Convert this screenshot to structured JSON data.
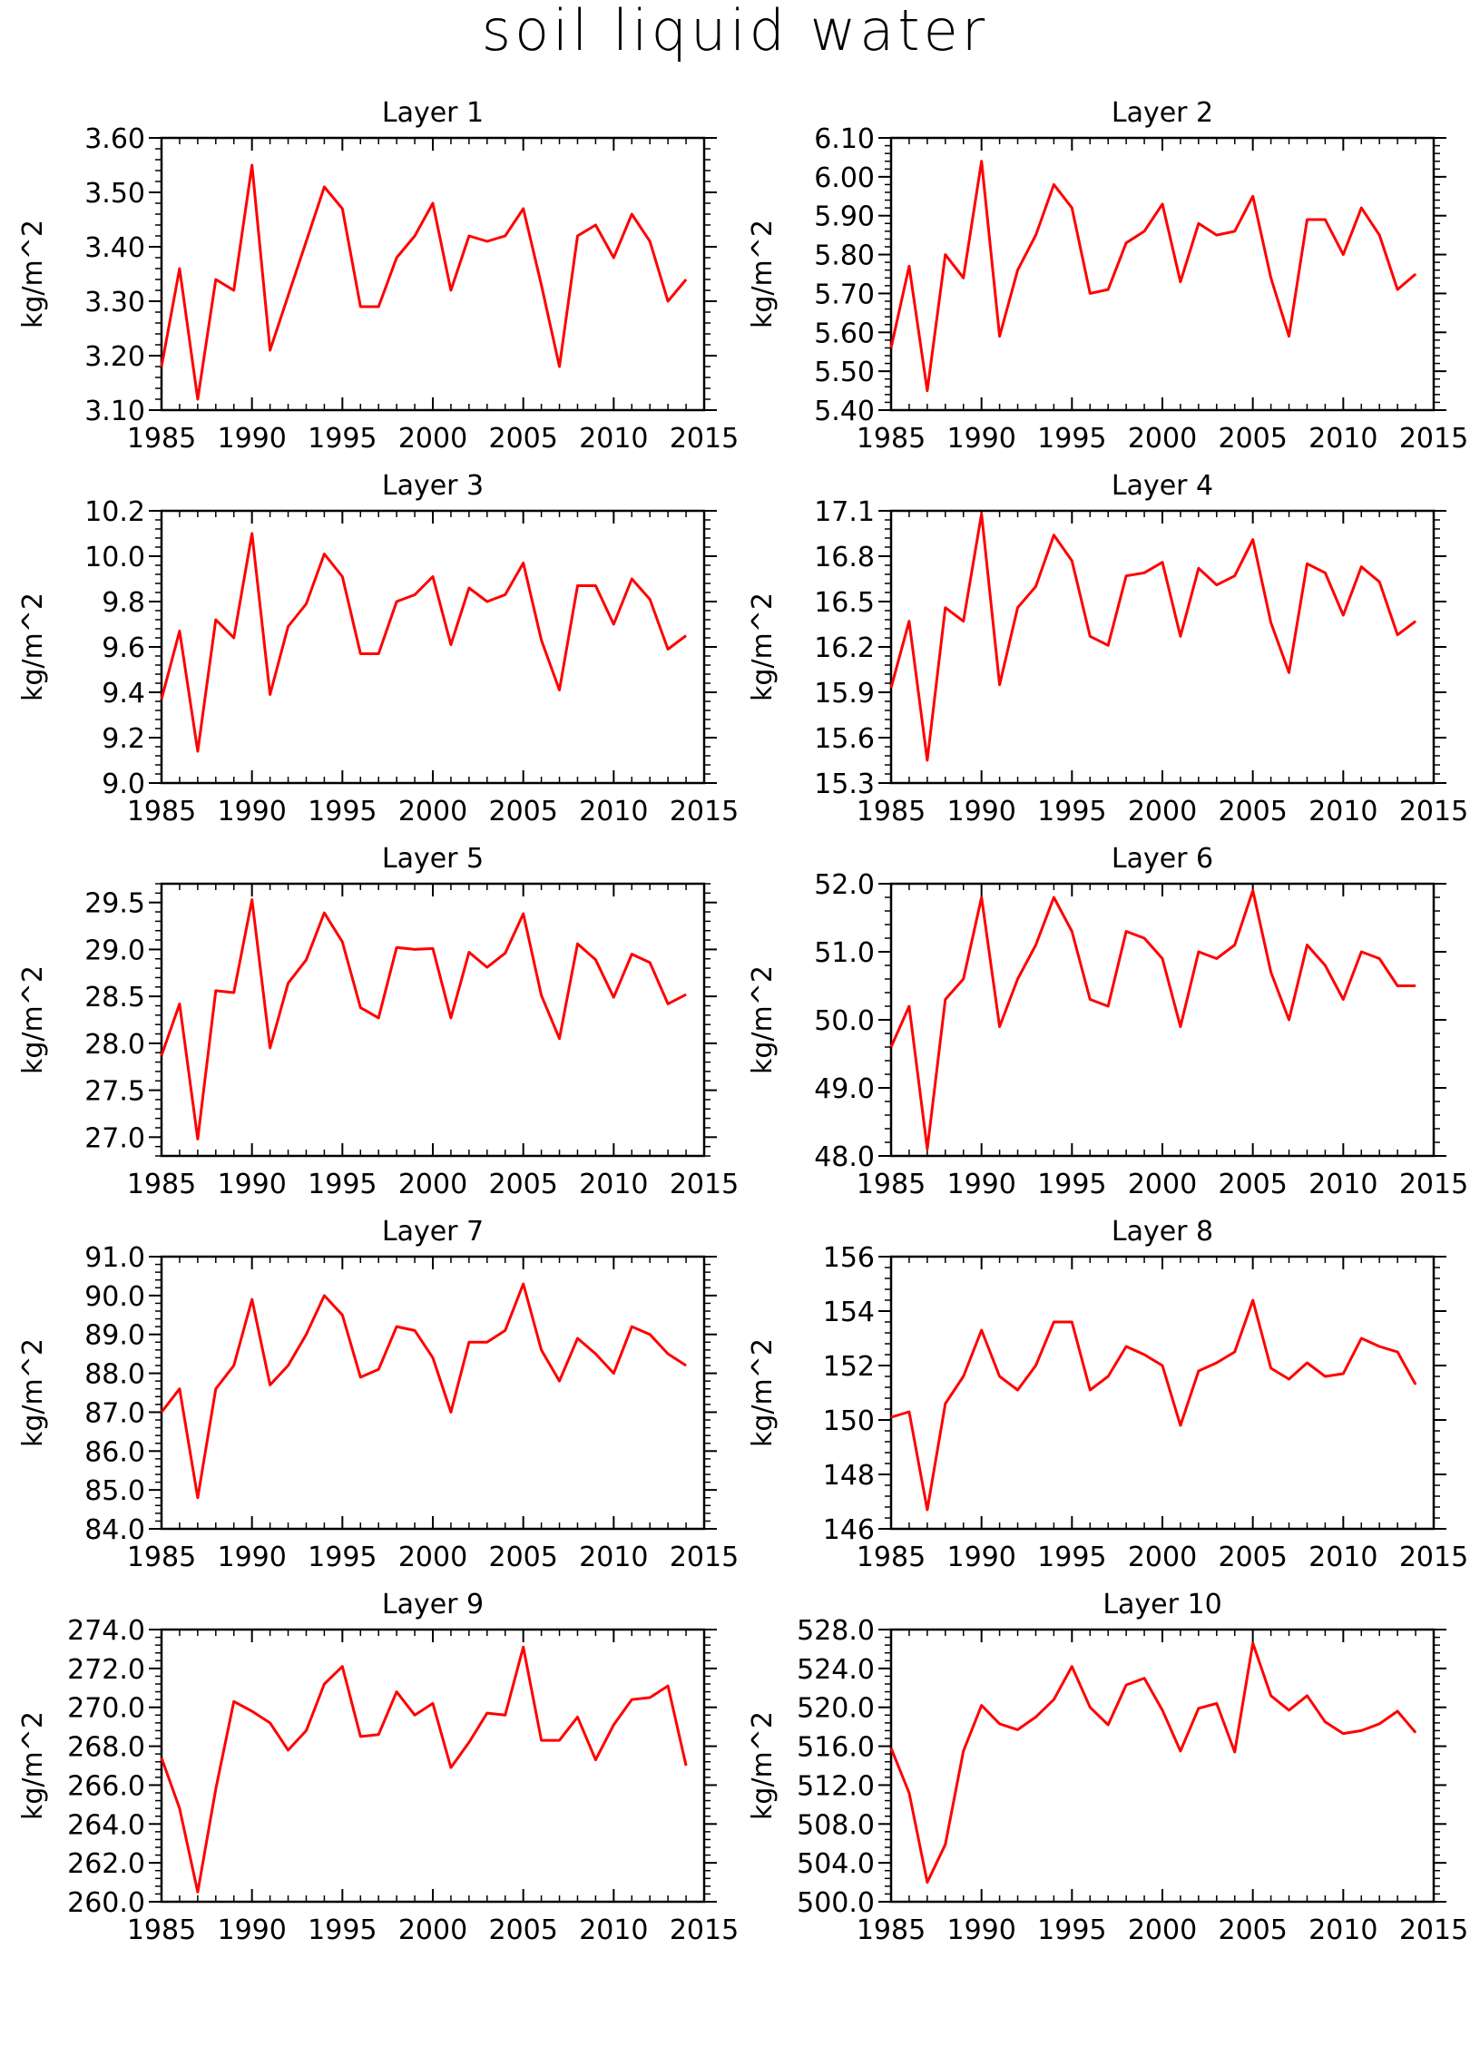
{
  "title": "soil liquid water",
  "footer": "",
  "chart_data": [
    {
      "type": "line",
      "title": "Layer 1",
      "ylabel": "kg/m^2",
      "x": [
        1985,
        1986,
        1987,
        1988,
        1989,
        1990,
        1991,
        1992,
        1993,
        1994,
        1995,
        1996,
        1997,
        1998,
        1999,
        2000,
        2001,
        2002,
        2003,
        2004,
        2005,
        2006,
        2007,
        2008,
        2009,
        2010,
        2011,
        2012,
        2013,
        2014
      ],
      "series": [
        {
          "values": [
            3.18,
            3.36,
            3.12,
            3.34,
            3.32,
            3.55,
            3.21,
            3.31,
            3.41,
            3.51,
            3.47,
            3.29,
            3.29,
            3.38,
            3.42,
            3.48,
            3.32,
            3.42,
            3.41,
            3.42,
            3.47,
            3.33,
            3.18,
            3.42,
            3.44,
            3.38,
            3.46,
            3.41,
            3.3,
            3.34
          ],
          "color": "#ff0000"
        }
      ],
      "xlim": [
        1985,
        2015
      ],
      "ylim": [
        3.1,
        3.6
      ],
      "xticks": [
        "1985",
        "1990",
        "1995",
        "2000",
        "2005",
        "2010",
        "2015"
      ],
      "yticks": [
        "3.10",
        "3.20",
        "3.30",
        "3.40",
        "3.50",
        "3.60"
      ]
    },
    {
      "type": "line",
      "title": "Layer 2",
      "ylabel": "kg/m^2",
      "x": [
        1985,
        1986,
        1987,
        1988,
        1989,
        1990,
        1991,
        1992,
        1993,
        1994,
        1995,
        1996,
        1997,
        1998,
        1999,
        2000,
        2001,
        2002,
        2003,
        2004,
        2005,
        2006,
        2007,
        2008,
        2009,
        2010,
        2011,
        2012,
        2013,
        2014
      ],
      "series": [
        {
          "values": [
            5.56,
            5.77,
            5.45,
            5.8,
            5.74,
            6.04,
            5.59,
            5.76,
            5.85,
            5.98,
            5.92,
            5.7,
            5.71,
            5.83,
            5.86,
            5.93,
            5.73,
            5.88,
            5.85,
            5.86,
            5.95,
            5.74,
            5.59,
            5.89,
            5.89,
            5.8,
            5.92,
            5.85,
            5.71,
            5.75
          ],
          "color": "#ff0000"
        }
      ],
      "xlim": [
        1985,
        2015
      ],
      "ylim": [
        5.4,
        6.1
      ],
      "xticks": [
        "1985",
        "1990",
        "1995",
        "2000",
        "2005",
        "2010",
        "2015"
      ],
      "yticks": [
        "5.40",
        "5.50",
        "5.60",
        "5.70",
        "5.80",
        "5.90",
        "6.00",
        "6.10"
      ]
    },
    {
      "type": "line",
      "title": "Layer 3",
      "ylabel": "kg/m^2",
      "x": [
        1985,
        1986,
        1987,
        1988,
        1989,
        1990,
        1991,
        1992,
        1993,
        1994,
        1995,
        1996,
        1997,
        1998,
        1999,
        2000,
        2001,
        2002,
        2003,
        2004,
        2005,
        2006,
        2007,
        2008,
        2009,
        2010,
        2011,
        2012,
        2013,
        2014
      ],
      "series": [
        {
          "values": [
            9.37,
            9.67,
            9.14,
            9.72,
            9.64,
            10.1,
            9.39,
            9.69,
            9.79,
            10.01,
            9.91,
            9.57,
            9.57,
            9.8,
            9.83,
            9.91,
            9.61,
            9.86,
            9.8,
            9.83,
            9.97,
            9.63,
            9.41,
            9.87,
            9.87,
            9.7,
            9.9,
            9.81,
            9.59,
            9.65
          ],
          "color": "#ff0000"
        }
      ],
      "xlim": [
        1985,
        2015
      ],
      "ylim": [
        9.0,
        10.2
      ],
      "xticks": [
        "1985",
        "1990",
        "1995",
        "2000",
        "2005",
        "2010",
        "2015"
      ],
      "yticks": [
        "9.0",
        "9.2",
        "9.4",
        "9.6",
        "9.8",
        "10.0",
        "10.2"
      ]
    },
    {
      "type": "line",
      "title": "Layer 4",
      "ylabel": "kg/m^2",
      "x": [
        1985,
        1986,
        1987,
        1988,
        1989,
        1990,
        1991,
        1992,
        1993,
        1994,
        1995,
        1996,
        1997,
        1998,
        1999,
        2000,
        2001,
        2002,
        2003,
        2004,
        2005,
        2006,
        2007,
        2008,
        2009,
        2010,
        2011,
        2012,
        2013,
        2014
      ],
      "series": [
        {
          "values": [
            15.93,
            16.37,
            15.45,
            16.46,
            16.37,
            17.08,
            15.95,
            16.46,
            16.6,
            16.94,
            16.77,
            16.27,
            16.21,
            16.67,
            16.69,
            16.76,
            16.27,
            16.72,
            16.61,
            16.67,
            16.91,
            16.36,
            16.03,
            16.75,
            16.69,
            16.41,
            16.73,
            16.63,
            16.28,
            16.37
          ],
          "color": "#ff0000"
        }
      ],
      "xlim": [
        1985,
        2015
      ],
      "ylim": [
        15.3,
        17.1
      ],
      "xticks": [
        "1985",
        "1990",
        "1995",
        "2000",
        "2005",
        "2010",
        "2015"
      ],
      "yticks": [
        "15.3",
        "15.6",
        "15.9",
        "16.2",
        "16.5",
        "16.8",
        "17.1"
      ]
    },
    {
      "type": "line",
      "title": "Layer 5",
      "ylabel": "kg/m^2",
      "x": [
        1985,
        1986,
        1987,
        1988,
        1989,
        1990,
        1991,
        1992,
        1993,
        1994,
        1995,
        1996,
        1997,
        1998,
        1999,
        2000,
        2001,
        2002,
        2003,
        2004,
        2005,
        2006,
        2007,
        2008,
        2009,
        2010,
        2011,
        2012,
        2013,
        2014
      ],
      "series": [
        {
          "values": [
            27.87,
            28.42,
            26.98,
            28.56,
            28.54,
            29.53,
            27.95,
            28.64,
            28.89,
            29.39,
            29.08,
            28.38,
            28.27,
            29.02,
            29.0,
            29.01,
            28.27,
            28.97,
            28.81,
            28.96,
            29.38,
            28.51,
            28.05,
            29.06,
            28.89,
            28.49,
            28.95,
            28.86,
            28.42,
            28.52
          ],
          "color": "#ff0000"
        }
      ],
      "xlim": [
        1985,
        2015
      ],
      "ylim": [
        26.8,
        29.7
      ],
      "xticks": [
        "1985",
        "1990",
        "1995",
        "2000",
        "2005",
        "2010",
        "2015"
      ],
      "yticks": [
        "27.0",
        "27.5",
        "28.0",
        "28.5",
        "29.0",
        "29.5"
      ]
    },
    {
      "type": "line",
      "title": "Layer 6",
      "ylabel": "kg/m^2",
      "x": [
        1985,
        1986,
        1987,
        1988,
        1989,
        1990,
        1991,
        1992,
        1993,
        1994,
        1995,
        1996,
        1997,
        1998,
        1999,
        2000,
        2001,
        2002,
        2003,
        2004,
        2005,
        2006,
        2007,
        2008,
        2009,
        2010,
        2011,
        2012,
        2013,
        2014
      ],
      "series": [
        {
          "values": [
            49.6,
            50.2,
            48.1,
            50.3,
            50.6,
            51.8,
            49.9,
            50.6,
            51.1,
            51.8,
            51.3,
            50.3,
            50.2,
            51.3,
            51.2,
            50.9,
            49.9,
            51.0,
            50.9,
            51.1,
            51.9,
            50.7,
            50.0,
            51.1,
            50.8,
            50.3,
            51.0,
            50.9,
            50.5,
            50.5
          ],
          "color": "#ff0000"
        }
      ],
      "xlim": [
        1985,
        2015
      ],
      "ylim": [
        48.0,
        52.0
      ],
      "xticks": [
        "1985",
        "1990",
        "1995",
        "2000",
        "2005",
        "2010",
        "2015"
      ],
      "yticks": [
        "48.0",
        "49.0",
        "50.0",
        "51.0",
        "52.0"
      ]
    },
    {
      "type": "line",
      "title": "Layer 7",
      "ylabel": "kg/m^2",
      "x": [
        1985,
        1986,
        1987,
        1988,
        1989,
        1990,
        1991,
        1992,
        1993,
        1994,
        1995,
        1996,
        1997,
        1998,
        1999,
        2000,
        2001,
        2002,
        2003,
        2004,
        2005,
        2006,
        2007,
        2008,
        2009,
        2010,
        2011,
        2012,
        2013,
        2014
      ],
      "series": [
        {
          "values": [
            87.0,
            87.6,
            84.8,
            87.6,
            88.2,
            89.9,
            87.7,
            88.2,
            89.0,
            90.0,
            89.5,
            87.9,
            88.1,
            89.2,
            89.1,
            88.4,
            87.0,
            88.8,
            88.8,
            89.1,
            90.3,
            88.6,
            87.8,
            88.9,
            88.5,
            88.0,
            89.2,
            89.0,
            88.5,
            88.2
          ],
          "color": "#ff0000"
        }
      ],
      "xlim": [
        1985,
        2015
      ],
      "ylim": [
        84.0,
        91.0
      ],
      "xticks": [
        "1985",
        "1990",
        "1995",
        "2000",
        "2005",
        "2010",
        "2015"
      ],
      "yticks": [
        "84.0",
        "85.0",
        "86.0",
        "87.0",
        "88.0",
        "89.0",
        "90.0",
        "91.0"
      ]
    },
    {
      "type": "line",
      "title": "Layer 8",
      "ylabel": "kg/m^2",
      "x": [
        1985,
        1986,
        1987,
        1988,
        1989,
        1990,
        1991,
        1992,
        1993,
        1994,
        1995,
        1996,
        1997,
        1998,
        1999,
        2000,
        2001,
        2002,
        2003,
        2004,
        2005,
        2006,
        2007,
        2008,
        2009,
        2010,
        2011,
        2012,
        2013,
        2014
      ],
      "series": [
        {
          "values": [
            150.1,
            150.3,
            146.7,
            150.6,
            151.6,
            153.3,
            151.6,
            151.1,
            152.0,
            153.6,
            153.6,
            151.1,
            151.6,
            152.7,
            152.4,
            152.0,
            149.8,
            151.8,
            152.1,
            152.5,
            154.4,
            151.9,
            151.5,
            152.1,
            151.6,
            151.7,
            153.0,
            152.7,
            152.5,
            151.3
          ],
          "color": "#ff0000"
        }
      ],
      "xlim": [
        1985,
        2015
      ],
      "ylim": [
        146,
        156
      ],
      "xticks": [
        "1985",
        "1990",
        "1995",
        "2000",
        "2005",
        "2010",
        "2015"
      ],
      "yticks": [
        "146",
        "148",
        "150",
        "152",
        "154",
        "156"
      ]
    },
    {
      "type": "line",
      "title": "Layer 9",
      "ylabel": "kg/m^2",
      "x": [
        1985,
        1986,
        1987,
        1988,
        1989,
        1990,
        1991,
        1992,
        1993,
        1994,
        1995,
        1996,
        1997,
        1998,
        1999,
        2000,
        2001,
        2002,
        2003,
        2004,
        2005,
        2006,
        2007,
        2008,
        2009,
        2010,
        2011,
        2012,
        2013,
        2014
      ],
      "series": [
        {
          "values": [
            267.4,
            264.8,
            260.5,
            265.8,
            270.3,
            269.8,
            269.2,
            267.8,
            268.8,
            271.2,
            272.1,
            268.5,
            268.6,
            270.8,
            269.6,
            270.2,
            266.9,
            268.2,
            269.7,
            269.6,
            273.1,
            268.3,
            268.3,
            269.5,
            267.3,
            269.1,
            270.4,
            270.5,
            271.1,
            267.0
          ],
          "color": "#ff0000"
        }
      ],
      "xlim": [
        1985,
        2015
      ],
      "ylim": [
        260.0,
        274.0
      ],
      "xticks": [
        "1985",
        "1990",
        "1995",
        "2000",
        "2005",
        "2010",
        "2015"
      ],
      "yticks": [
        "260.0",
        "262.0",
        "264.0",
        "266.0",
        "268.0",
        "270.0",
        "272.0",
        "274.0"
      ]
    },
    {
      "type": "line",
      "title": "Layer 10",
      "ylabel": "kg/m^2",
      "x": [
        1985,
        1986,
        1987,
        1988,
        1989,
        1990,
        1991,
        1992,
        1993,
        1994,
        1995,
        1996,
        1997,
        1998,
        1999,
        2000,
        2001,
        2002,
        2003,
        2004,
        2005,
        2006,
        2007,
        2008,
        2009,
        2010,
        2011,
        2012,
        2013,
        2014
      ],
      "series": [
        {
          "values": [
            515.8,
            511.2,
            502.0,
            505.9,
            515.5,
            520.2,
            518.3,
            517.7,
            519.0,
            520.8,
            524.2,
            520.0,
            518.2,
            522.3,
            523.0,
            519.7,
            515.5,
            519.9,
            520.4,
            515.4,
            526.6,
            521.2,
            519.7,
            521.2,
            518.5,
            517.3,
            517.6,
            518.3,
            519.6,
            517.4
          ],
          "color": "#ff0000"
        }
      ],
      "xlim": [
        1985,
        2015
      ],
      "ylim": [
        500.0,
        528.0
      ],
      "xticks": [
        "1985",
        "1990",
        "1995",
        "2000",
        "2005",
        "2010",
        "2015"
      ],
      "yticks": [
        "500.0",
        "504.0",
        "508.0",
        "512.0",
        "516.0",
        "520.0",
        "524.0",
        "528.0"
      ]
    }
  ]
}
